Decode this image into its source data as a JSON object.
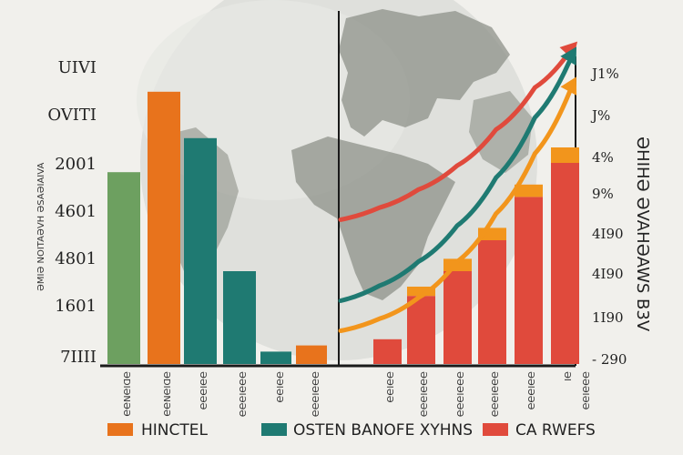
{
  "chart_data": {
    "type": "bar",
    "left_panel": {
      "y_ticks": [
        "UIVI",
        "OVITI",
        "2001",
        "4601",
        "4801",
        "1601",
        "7IIII"
      ],
      "ylabel_vertical": "ƏMIƏ NOITAƏVH ƏSAƏIAIVA",
      "bars": [
        {
          "series": "green",
          "value": 62,
          "label": "ƏDIƏNƏƏ"
        },
        {
          "series": "orange",
          "value": 88,
          "label": "ƏDIƏNƏƏ"
        },
        {
          "series": "teal",
          "value": 73,
          "label": "ƏƏIƏƏƏ"
        },
        {
          "series": "teal",
          "value": 30,
          "label": "ƏƏƏIƏƏƏ"
        },
        {
          "series": "teal",
          "value": 4,
          "label": "ƏƏIƏƏ"
        },
        {
          "series": "orange",
          "value": 6,
          "label": "ƏƏƏIƏƏƏ"
        }
      ]
    },
    "right_panel": {
      "y_ticks": [
        "J1%",
        "J%",
        "4%",
        "9%",
        "4I90",
        "4I90",
        "1I90",
        "- 290"
      ],
      "ylabel_vertical": "ƏHIHƏ ƏVAHƏAWS B3V",
      "bars": [
        {
          "value": 8,
          "top": 0,
          "label": "ƏƏIƏƏ"
        },
        {
          "value": 22,
          "top": 3,
          "label": "ƏƏƏIƏƏƏ"
        },
        {
          "value": 30,
          "top": 4,
          "label": "ƏƏƏIƏƏƏ"
        },
        {
          "value": 40,
          "top": 4,
          "label": "ƏƏƏIƏƏƏ"
        },
        {
          "value": 54,
          "top": 4,
          "label": "ƏƏIƏƏƏ"
        },
        {
          "value": 65,
          "top": 5,
          "label": "ƏI"
        },
        {
          "value": 0,
          "top": 0,
          "label": "ƏƏƏIƏƏ"
        }
      ],
      "trend_lines": [
        {
          "color": "#e04a3c",
          "name": "red",
          "points": [
            [
              0,
              42
            ],
            [
              1,
              46
            ],
            [
              2,
              52
            ],
            [
              3,
              60
            ],
            [
              4,
              72
            ],
            [
              5,
              86
            ],
            [
              6,
              100
            ]
          ]
        },
        {
          "color": "#1f7a72",
          "name": "teal",
          "points": [
            [
              0,
              15
            ],
            [
              1,
              20
            ],
            [
              2,
              28
            ],
            [
              3,
              40
            ],
            [
              4,
              56
            ],
            [
              5,
              76
            ],
            [
              6,
              98
            ]
          ]
        },
        {
          "color": "#f2951c",
          "name": "orange",
          "points": [
            [
              0,
              5
            ],
            [
              1,
              9
            ],
            [
              2,
              16
            ],
            [
              3,
              28
            ],
            [
              4,
              44
            ],
            [
              5,
              64
            ],
            [
              6,
              88
            ]
          ]
        }
      ]
    },
    "legend": [
      {
        "label": "HINCTEL",
        "color": "#e8731c"
      },
      {
        "label": "OSTEN BANOFE XYHNS",
        "color": "#1f7a72"
      },
      {
        "label": "CA RWEFS",
        "color": "#e04a3c"
      }
    ],
    "colors": {
      "green": "#6da060",
      "orange": "#e8731c",
      "teal": "#1f7a72",
      "red": "#e04a3c",
      "cap": "#f2951c",
      "background": "#f1f0ec",
      "globe": "#d9dad6",
      "land": "#8e9189"
    }
  }
}
